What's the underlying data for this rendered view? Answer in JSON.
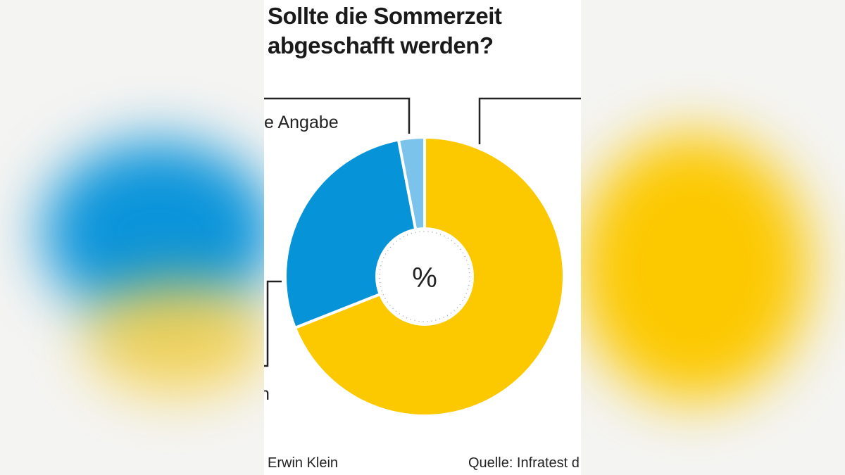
{
  "chart_data": {
    "type": "pie",
    "title": "Sollte die Sommerzeit abgeschafft werden?",
    "center_label": "%",
    "slices": [
      {
        "name": "",
        "value": 69,
        "color": "#fcc800"
      },
      {
        "name": "",
        "value": 28,
        "color": "#0693d8"
      },
      {
        "name": "…e Angabe",
        "value": 3,
        "color": "#7cc3ec"
      }
    ],
    "start_angle": "top, clockwise",
    "legend": "callout labels (partially cropped)"
  },
  "labels": {
    "no_answer": "e Angabe",
    "fragment": "n"
  },
  "footer": {
    "author": "Erwin Klein",
    "source": "Quelle: Infratest d"
  }
}
